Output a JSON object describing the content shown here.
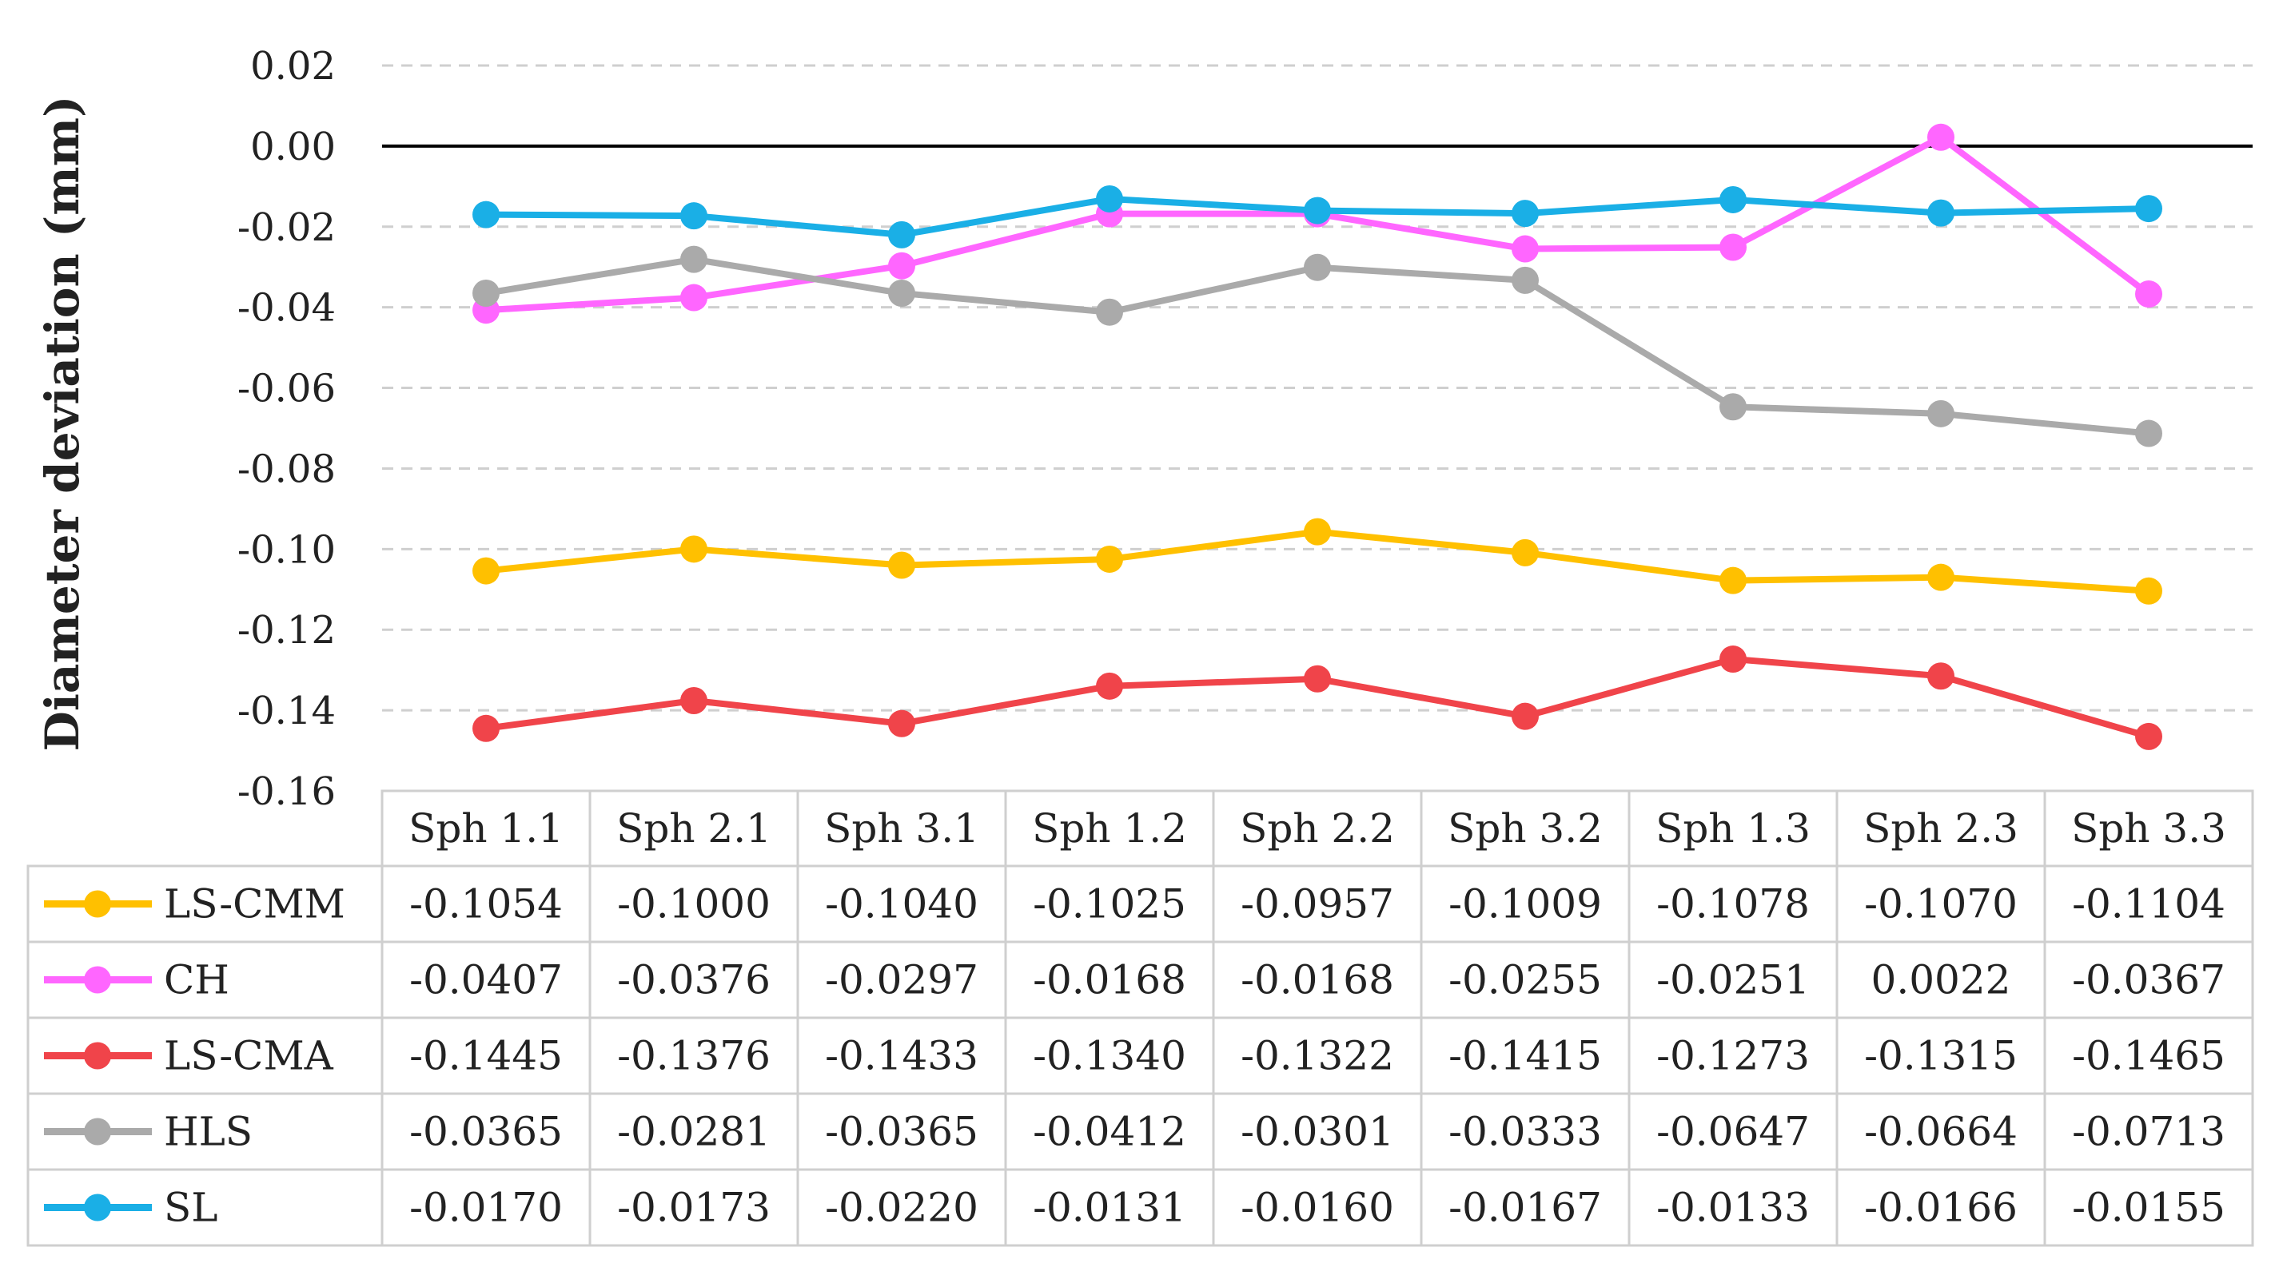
{
  "chart_data": {
    "type": "line",
    "title": "",
    "xlabel": "",
    "ylabel": "Diameter deviation (mm)",
    "ylim": [
      -0.16,
      0.02
    ],
    "yticks": [
      "0.02",
      "0.00",
      "-0.02",
      "-0.04",
      "-0.06",
      "-0.08",
      "-0.10",
      "-0.12",
      "-0.14",
      "-0.16"
    ],
    "grid": true,
    "legend": "table-left",
    "categories": [
      "Sph 1.1",
      "Sph 2.1",
      "Sph 3.1",
      "Sph 1.2",
      "Sph 2.2",
      "Sph 3.2",
      "Sph 1.3",
      "Sph 2.3",
      "Sph 3.3"
    ],
    "series": [
      {
        "name": "LS-CMM",
        "color": "#FFC000",
        "values": [
          -0.1054,
          -0.1,
          -0.104,
          -0.1025,
          -0.0957,
          -0.1009,
          -0.1078,
          -0.107,
          -0.1104
        ],
        "labels": [
          "-0.1054",
          "-0.1000",
          "-0.1040",
          "-0.1025",
          "-0.0957",
          "-0.1009",
          "-0.1078",
          "-0.1070",
          "-0.1104"
        ]
      },
      {
        "name": "CH",
        "color": "#FF66FF",
        "values": [
          -0.0407,
          -0.0376,
          -0.0297,
          -0.0168,
          -0.0168,
          -0.0255,
          -0.0251,
          0.0022,
          -0.0367
        ],
        "labels": [
          "-0.0407",
          "-0.0376",
          "-0.0297",
          "-0.0168",
          "-0.0168",
          "-0.0255",
          "-0.0251",
          "0.0022",
          "-0.0367"
        ]
      },
      {
        "name": "LS-CMA",
        "color": "#F0444A",
        "values": [
          -0.1445,
          -0.1376,
          -0.1433,
          -0.134,
          -0.1322,
          -0.1415,
          -0.1273,
          -0.1315,
          -0.1465
        ],
        "labels": [
          "-0.1445",
          "-0.1376",
          "-0.1433",
          "-0.1340",
          "-0.1322",
          "-0.1415",
          "-0.1273",
          "-0.1315",
          "-0.1465"
        ]
      },
      {
        "name": "HLS",
        "color": "#AAAAAA",
        "values": [
          -0.0365,
          -0.0281,
          -0.0365,
          -0.0412,
          -0.0301,
          -0.0333,
          -0.0647,
          -0.0664,
          -0.0713
        ],
        "labels": [
          "-0.0365",
          "-0.0281",
          "-0.0365",
          "-0.0412",
          "-0.0301",
          "-0.0333",
          "-0.0647",
          "-0.0664",
          "-0.0713"
        ]
      },
      {
        "name": "SL",
        "color": "#1AAFE6",
        "values": [
          -0.017,
          -0.0173,
          -0.022,
          -0.0131,
          -0.016,
          -0.0167,
          -0.0133,
          -0.0166,
          -0.0155
        ],
        "labels": [
          "-0.0170",
          "-0.0173",
          "-0.0220",
          "-0.0131",
          "-0.0160",
          "-0.0167",
          "-0.0133",
          "-0.0166",
          "-0.0155"
        ]
      }
    ]
  }
}
